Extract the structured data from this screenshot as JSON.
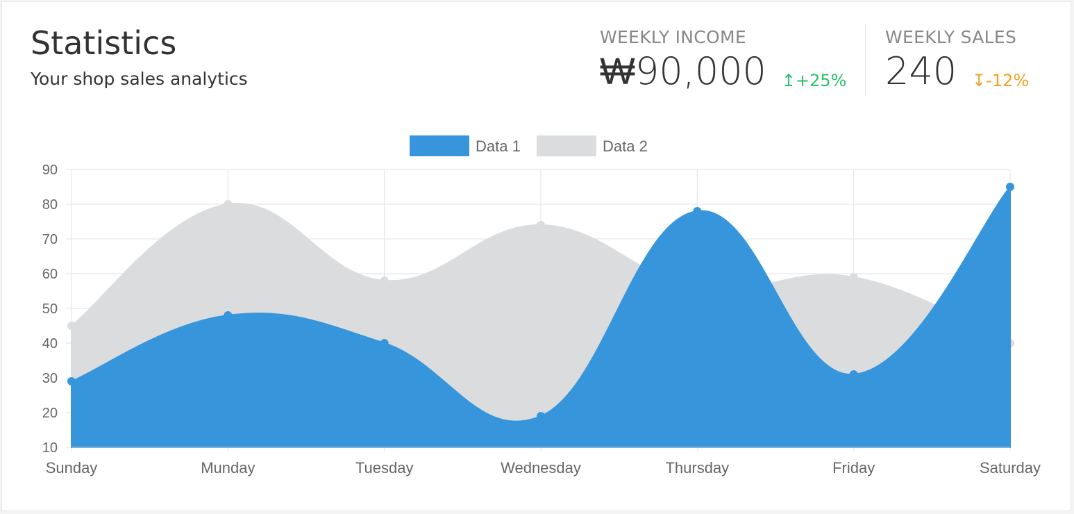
{
  "header": {
    "title": "Statistics",
    "subtitle": "Your shop sales analytics"
  },
  "stats": {
    "income": {
      "label": "WEEKLY INCOME",
      "value": "₩90,000",
      "change": "+25%",
      "direction": "up",
      "arrow": "↥",
      "color": "#27c267"
    },
    "sales": {
      "label": "WEEKLY SALES",
      "value": "240",
      "change": "-12%",
      "direction": "down",
      "arrow": "↧",
      "color": "#f0a020"
    }
  },
  "chart_data": {
    "type": "area",
    "x": [
      "Sunday",
      "Munday",
      "Tuesday",
      "Wednesday",
      "Thursday",
      "Friday",
      "Saturday"
    ],
    "series": [
      {
        "name": "Data 1",
        "color": "#3796db",
        "values": [
          29,
          48,
          40,
          19,
          78,
          31,
          85
        ]
      },
      {
        "name": "Data 2",
        "color": "#dadcde",
        "values": [
          45,
          80,
          58,
          74,
          56,
          59,
          40
        ]
      }
    ],
    "ylim": [
      10,
      90
    ],
    "yticks": [
      10,
      20,
      30,
      40,
      50,
      60,
      70,
      80,
      90
    ],
    "grid": true,
    "legend": "top-center",
    "curve": "smooth"
  }
}
